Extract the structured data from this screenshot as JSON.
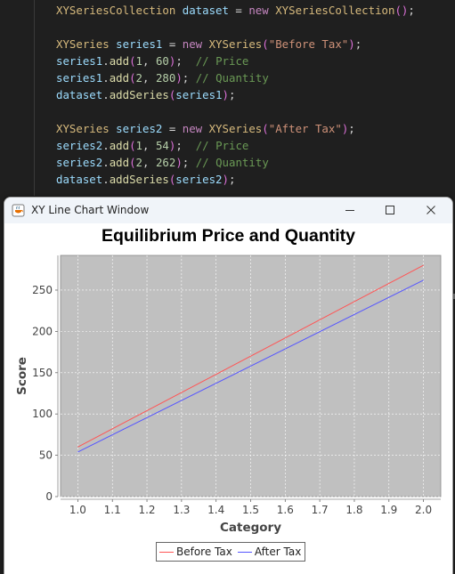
{
  "editor": {
    "lines": [
      [
        {
          "t": "XYSeriesCollection",
          "c": "t-type"
        },
        {
          "t": " dataset ",
          "c": "t-var"
        },
        {
          "t": "= ",
          "c": "t-op"
        },
        {
          "t": "new ",
          "c": "t-kw"
        },
        {
          "t": "XYSeriesCollection",
          "c": "t-type"
        },
        {
          "t": "()",
          "c": "t-pun2"
        },
        {
          "t": ";",
          "c": "t-op"
        }
      ],
      [],
      [
        {
          "t": "XYSeries",
          "c": "t-type"
        },
        {
          "t": " series1 ",
          "c": "t-var"
        },
        {
          "t": "= ",
          "c": "t-op"
        },
        {
          "t": "new ",
          "c": "t-kw"
        },
        {
          "t": "XYSeries",
          "c": "t-type"
        },
        {
          "t": "(",
          "c": "t-pun2"
        },
        {
          "t": "\"Before Tax\"",
          "c": "t-str"
        },
        {
          "t": ")",
          "c": "t-pun2"
        },
        {
          "t": ";",
          "c": "t-op"
        }
      ],
      [
        {
          "t": "series1",
          "c": "t-var"
        },
        {
          "t": ".",
          "c": "t-op"
        },
        {
          "t": "add",
          "c": "t-fn"
        },
        {
          "t": "(",
          "c": "t-pun2"
        },
        {
          "t": "1",
          "c": "t-num"
        },
        {
          "t": ", ",
          "c": "t-op"
        },
        {
          "t": "60",
          "c": "t-num"
        },
        {
          "t": ")",
          "c": "t-pun2"
        },
        {
          "t": ";  ",
          "c": "t-op"
        },
        {
          "t": "// Price",
          "c": "t-com"
        }
      ],
      [
        {
          "t": "series1",
          "c": "t-var"
        },
        {
          "t": ".",
          "c": "t-op"
        },
        {
          "t": "add",
          "c": "t-fn"
        },
        {
          "t": "(",
          "c": "t-pun2"
        },
        {
          "t": "2",
          "c": "t-num"
        },
        {
          "t": ", ",
          "c": "t-op"
        },
        {
          "t": "280",
          "c": "t-num"
        },
        {
          "t": ")",
          "c": "t-pun2"
        },
        {
          "t": "; ",
          "c": "t-op"
        },
        {
          "t": "// Quantity",
          "c": "t-com"
        }
      ],
      [
        {
          "t": "dataset",
          "c": "t-var"
        },
        {
          "t": ".",
          "c": "t-op"
        },
        {
          "t": "addSeries",
          "c": "t-fn"
        },
        {
          "t": "(",
          "c": "t-pun2"
        },
        {
          "t": "series1",
          "c": "t-var"
        },
        {
          "t": ")",
          "c": "t-pun2"
        },
        {
          "t": ";",
          "c": "t-op"
        }
      ],
      [],
      [
        {
          "t": "XYSeries",
          "c": "t-type"
        },
        {
          "t": " series2 ",
          "c": "t-var"
        },
        {
          "t": "= ",
          "c": "t-op"
        },
        {
          "t": "new ",
          "c": "t-kw"
        },
        {
          "t": "XYSeries",
          "c": "t-type"
        },
        {
          "t": "(",
          "c": "t-pun2"
        },
        {
          "t": "\"After Tax\"",
          "c": "t-str"
        },
        {
          "t": ")",
          "c": "t-pun2"
        },
        {
          "t": ";",
          "c": "t-op"
        }
      ],
      [
        {
          "t": "series2",
          "c": "t-var"
        },
        {
          "t": ".",
          "c": "t-op"
        },
        {
          "t": "add",
          "c": "t-fn"
        },
        {
          "t": "(",
          "c": "t-pun2"
        },
        {
          "t": "1",
          "c": "t-num"
        },
        {
          "t": ", ",
          "c": "t-op"
        },
        {
          "t": "54",
          "c": "t-num"
        },
        {
          "t": ")",
          "c": "t-pun2"
        },
        {
          "t": ";  ",
          "c": "t-op"
        },
        {
          "t": "// Price",
          "c": "t-com"
        }
      ],
      [
        {
          "t": "series2",
          "c": "t-var"
        },
        {
          "t": ".",
          "c": "t-op"
        },
        {
          "t": "add",
          "c": "t-fn"
        },
        {
          "t": "(",
          "c": "t-pun2"
        },
        {
          "t": "2",
          "c": "t-num"
        },
        {
          "t": ", ",
          "c": "t-op"
        },
        {
          "t": "262",
          "c": "t-num"
        },
        {
          "t": ")",
          "c": "t-pun2"
        },
        {
          "t": "; ",
          "c": "t-op"
        },
        {
          "t": "// Quantity",
          "c": "t-com"
        }
      ],
      [
        {
          "t": "dataset",
          "c": "t-var"
        },
        {
          "t": ".",
          "c": "t-op"
        },
        {
          "t": "addSeries",
          "c": "t-fn"
        },
        {
          "t": "(",
          "c": "t-pun2"
        },
        {
          "t": "series2",
          "c": "t-var"
        },
        {
          "t": ")",
          "c": "t-pun2"
        },
        {
          "t": ";",
          "c": "t-op"
        }
      ]
    ]
  },
  "window": {
    "title": "XY Line Chart Window",
    "icons": {
      "app": "java-cup-icon",
      "minimize": "minimize-icon",
      "maximize": "maximize-icon",
      "close": "close-icon"
    }
  },
  "chart_data": {
    "type": "line",
    "title": "Equilibrium Price and Quantity",
    "xlabel": "Category",
    "ylabel": "Score",
    "xlim": [
      0.95,
      2.05
    ],
    "ylim": [
      0,
      292
    ],
    "x_ticks": [
      "1.0",
      "1.1",
      "1.2",
      "1.3",
      "1.4",
      "1.5",
      "1.6",
      "1.7",
      "1.8",
      "1.9",
      "2.0"
    ],
    "y_ticks": [
      "0",
      "50",
      "100",
      "150",
      "200",
      "250"
    ],
    "grid": true,
    "legend_position": "bottom",
    "plot_background": "#c0c0c0",
    "series": [
      {
        "name": "Before Tax",
        "color": "#ff5555",
        "x": [
          1,
          2
        ],
        "y": [
          60,
          280
        ]
      },
      {
        "name": "After Tax",
        "color": "#5555ff",
        "x": [
          1,
          2
        ],
        "y": [
          54,
          262
        ]
      }
    ]
  }
}
